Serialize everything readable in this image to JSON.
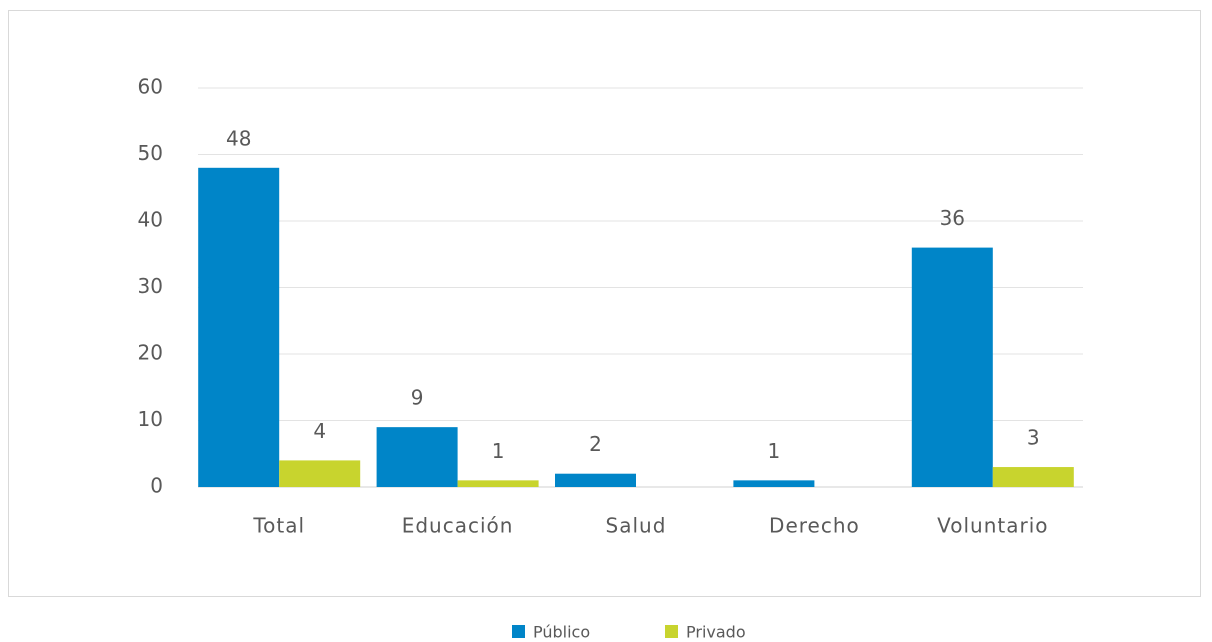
{
  "chart_data": {
    "type": "bar",
    "categories": [
      "Total",
      "Educación",
      "Salud",
      "Derecho",
      "Voluntario"
    ],
    "series": [
      {
        "name": "Público",
        "color": "#0085c8",
        "values": [
          48,
          9,
          2,
          1,
          36
        ]
      },
      {
        "name": "Privado",
        "color": "#c8d42e",
        "values": [
          4,
          1,
          null,
          null,
          3
        ]
      }
    ],
    "ylim": [
      0,
      60
    ],
    "yticks": [
      0,
      10,
      20,
      30,
      40,
      50,
      60
    ],
    "grid": true,
    "legend": "bottom"
  }
}
